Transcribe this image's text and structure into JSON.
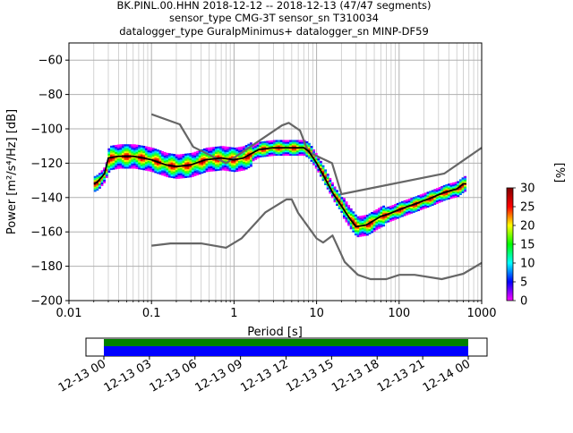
{
  "chart_data": {
    "type": "heatmap",
    "title": {
      "line1": "BK.PINL.00.HHN   2018-12-12 -- 2018-12-13  (47/47 segments)",
      "line2": "sensor_type CMG-3T sensor_sn T310034",
      "line3": "datalogger_type GuralpMinimus+ datalogger_sn MINP-DF59"
    },
    "xlabel": "Period [s]",
    "ylabel": "Power [m²/s⁴/Hz] [dB]",
    "x_scale": "log",
    "xlim": [
      0.01,
      1000
    ],
    "ylim": [
      -200,
      -50
    ],
    "x_ticks": [
      {
        "value": 0.01,
        "label": "0.01"
      },
      {
        "value": 0.1,
        "label": "0.1"
      },
      {
        "value": 1,
        "label": "1"
      },
      {
        "value": 10,
        "label": "10"
      },
      {
        "value": 100,
        "label": "100"
      },
      {
        "value": 1000,
        "label": "1000"
      }
    ],
    "y_ticks": [
      {
        "value": -60,
        "label": "−60"
      },
      {
        "value": -80,
        "label": "−80"
      },
      {
        "value": -100,
        "label": "−100"
      },
      {
        "value": -120,
        "label": "−120"
      },
      {
        "value": -140,
        "label": "−140"
      },
      {
        "value": -160,
        "label": "−160"
      },
      {
        "value": -180,
        "label": "−180"
      },
      {
        "value": -200,
        "label": "−200"
      }
    ],
    "grid": true,
    "series": [
      {
        "role": "new_high_noise_model",
        "color": "#666666",
        "points": [
          [
            0.1,
            -91.5
          ],
          [
            0.22,
            -97.4
          ],
          [
            0.32,
            -110.5
          ],
          [
            0.8,
            -120
          ],
          [
            3.8,
            -98
          ],
          [
            4.6,
            -96.5
          ],
          [
            6.3,
            -101
          ],
          [
            7.9,
            -113.5
          ],
          [
            15.4,
            -120
          ],
          [
            20,
            -138
          ],
          [
            354,
            -126
          ],
          [
            1000,
            -111
          ]
        ]
      },
      {
        "role": "new_low_noise_model",
        "color": "#666666",
        "points": [
          [
            0.1,
            -168
          ],
          [
            0.17,
            -166.7
          ],
          [
            0.4,
            -166.7
          ],
          [
            0.8,
            -169.2
          ],
          [
            1.24,
            -163.7
          ],
          [
            2.4,
            -148.6
          ],
          [
            4.3,
            -141.1
          ],
          [
            5,
            -141.1
          ],
          [
            6,
            -149
          ],
          [
            10,
            -163.8
          ],
          [
            12,
            -166.2
          ],
          [
            15.6,
            -162.1
          ],
          [
            21.9,
            -177.5
          ],
          [
            31.6,
            -185
          ],
          [
            45,
            -187.5
          ],
          [
            70,
            -187.5
          ],
          [
            101,
            -185
          ],
          [
            154,
            -185
          ],
          [
            328,
            -187.5
          ],
          [
            600,
            -184.4
          ],
          [
            1000,
            -178
          ]
        ]
      },
      {
        "role": "mode",
        "color": "#000000",
        "points": [
          [
            0.02,
            -132
          ],
          [
            0.022,
            -131
          ],
          [
            0.025,
            -128
          ],
          [
            0.027,
            -126
          ],
          [
            0.03,
            -117
          ],
          [
            0.04,
            -116
          ],
          [
            0.06,
            -116
          ],
          [
            0.08,
            -117
          ],
          [
            0.1,
            -118
          ],
          [
            0.15,
            -121
          ],
          [
            0.2,
            -122
          ],
          [
            0.3,
            -121
          ],
          [
            0.45,
            -118
          ],
          [
            0.7,
            -117
          ],
          [
            1,
            -118
          ],
          [
            1.3,
            -117
          ],
          [
            2,
            -112
          ],
          [
            3,
            -111
          ],
          [
            5,
            -111
          ],
          [
            7,
            -111
          ],
          [
            8,
            -113
          ],
          [
            10,
            -120
          ],
          [
            13,
            -130
          ],
          [
            16,
            -138
          ],
          [
            20,
            -145
          ],
          [
            25,
            -152
          ],
          [
            30,
            -157
          ],
          [
            40,
            -156
          ],
          [
            60,
            -151
          ],
          [
            80,
            -149
          ],
          [
            100,
            -147
          ],
          [
            150,
            -144
          ],
          [
            250,
            -140
          ],
          [
            350,
            -137
          ],
          [
            500,
            -135
          ],
          [
            600,
            -132
          ],
          [
            650,
            -132
          ]
        ]
      }
    ],
    "colorbar": {
      "label": "[%]",
      "range": [
        0,
        30
      ],
      "ticks": [
        {
          "value": 0,
          "label": "0"
        },
        {
          "value": 5,
          "label": "5"
        },
        {
          "value": 10,
          "label": "10"
        },
        {
          "value": 15,
          "label": "15"
        },
        {
          "value": 20,
          "label": "20"
        },
        {
          "value": 25,
          "label": "25"
        },
        {
          "value": 30,
          "label": "30"
        }
      ],
      "colors": [
        "#ff00ff",
        "#0000ff",
        "#00ffff",
        "#00ff00",
        "#ffff00",
        "#ff0000",
        "#800000"
      ]
    },
    "timeline": {
      "ticks": [
        "12-13 00",
        "12-13 03",
        "12-13 06",
        "12-13 09",
        "12-13 12",
        "12-13 15",
        "12-13 18",
        "12-13 21",
        "12-14 00"
      ],
      "coverage_color": "#008000",
      "psd_color": "#0000ff"
    }
  }
}
